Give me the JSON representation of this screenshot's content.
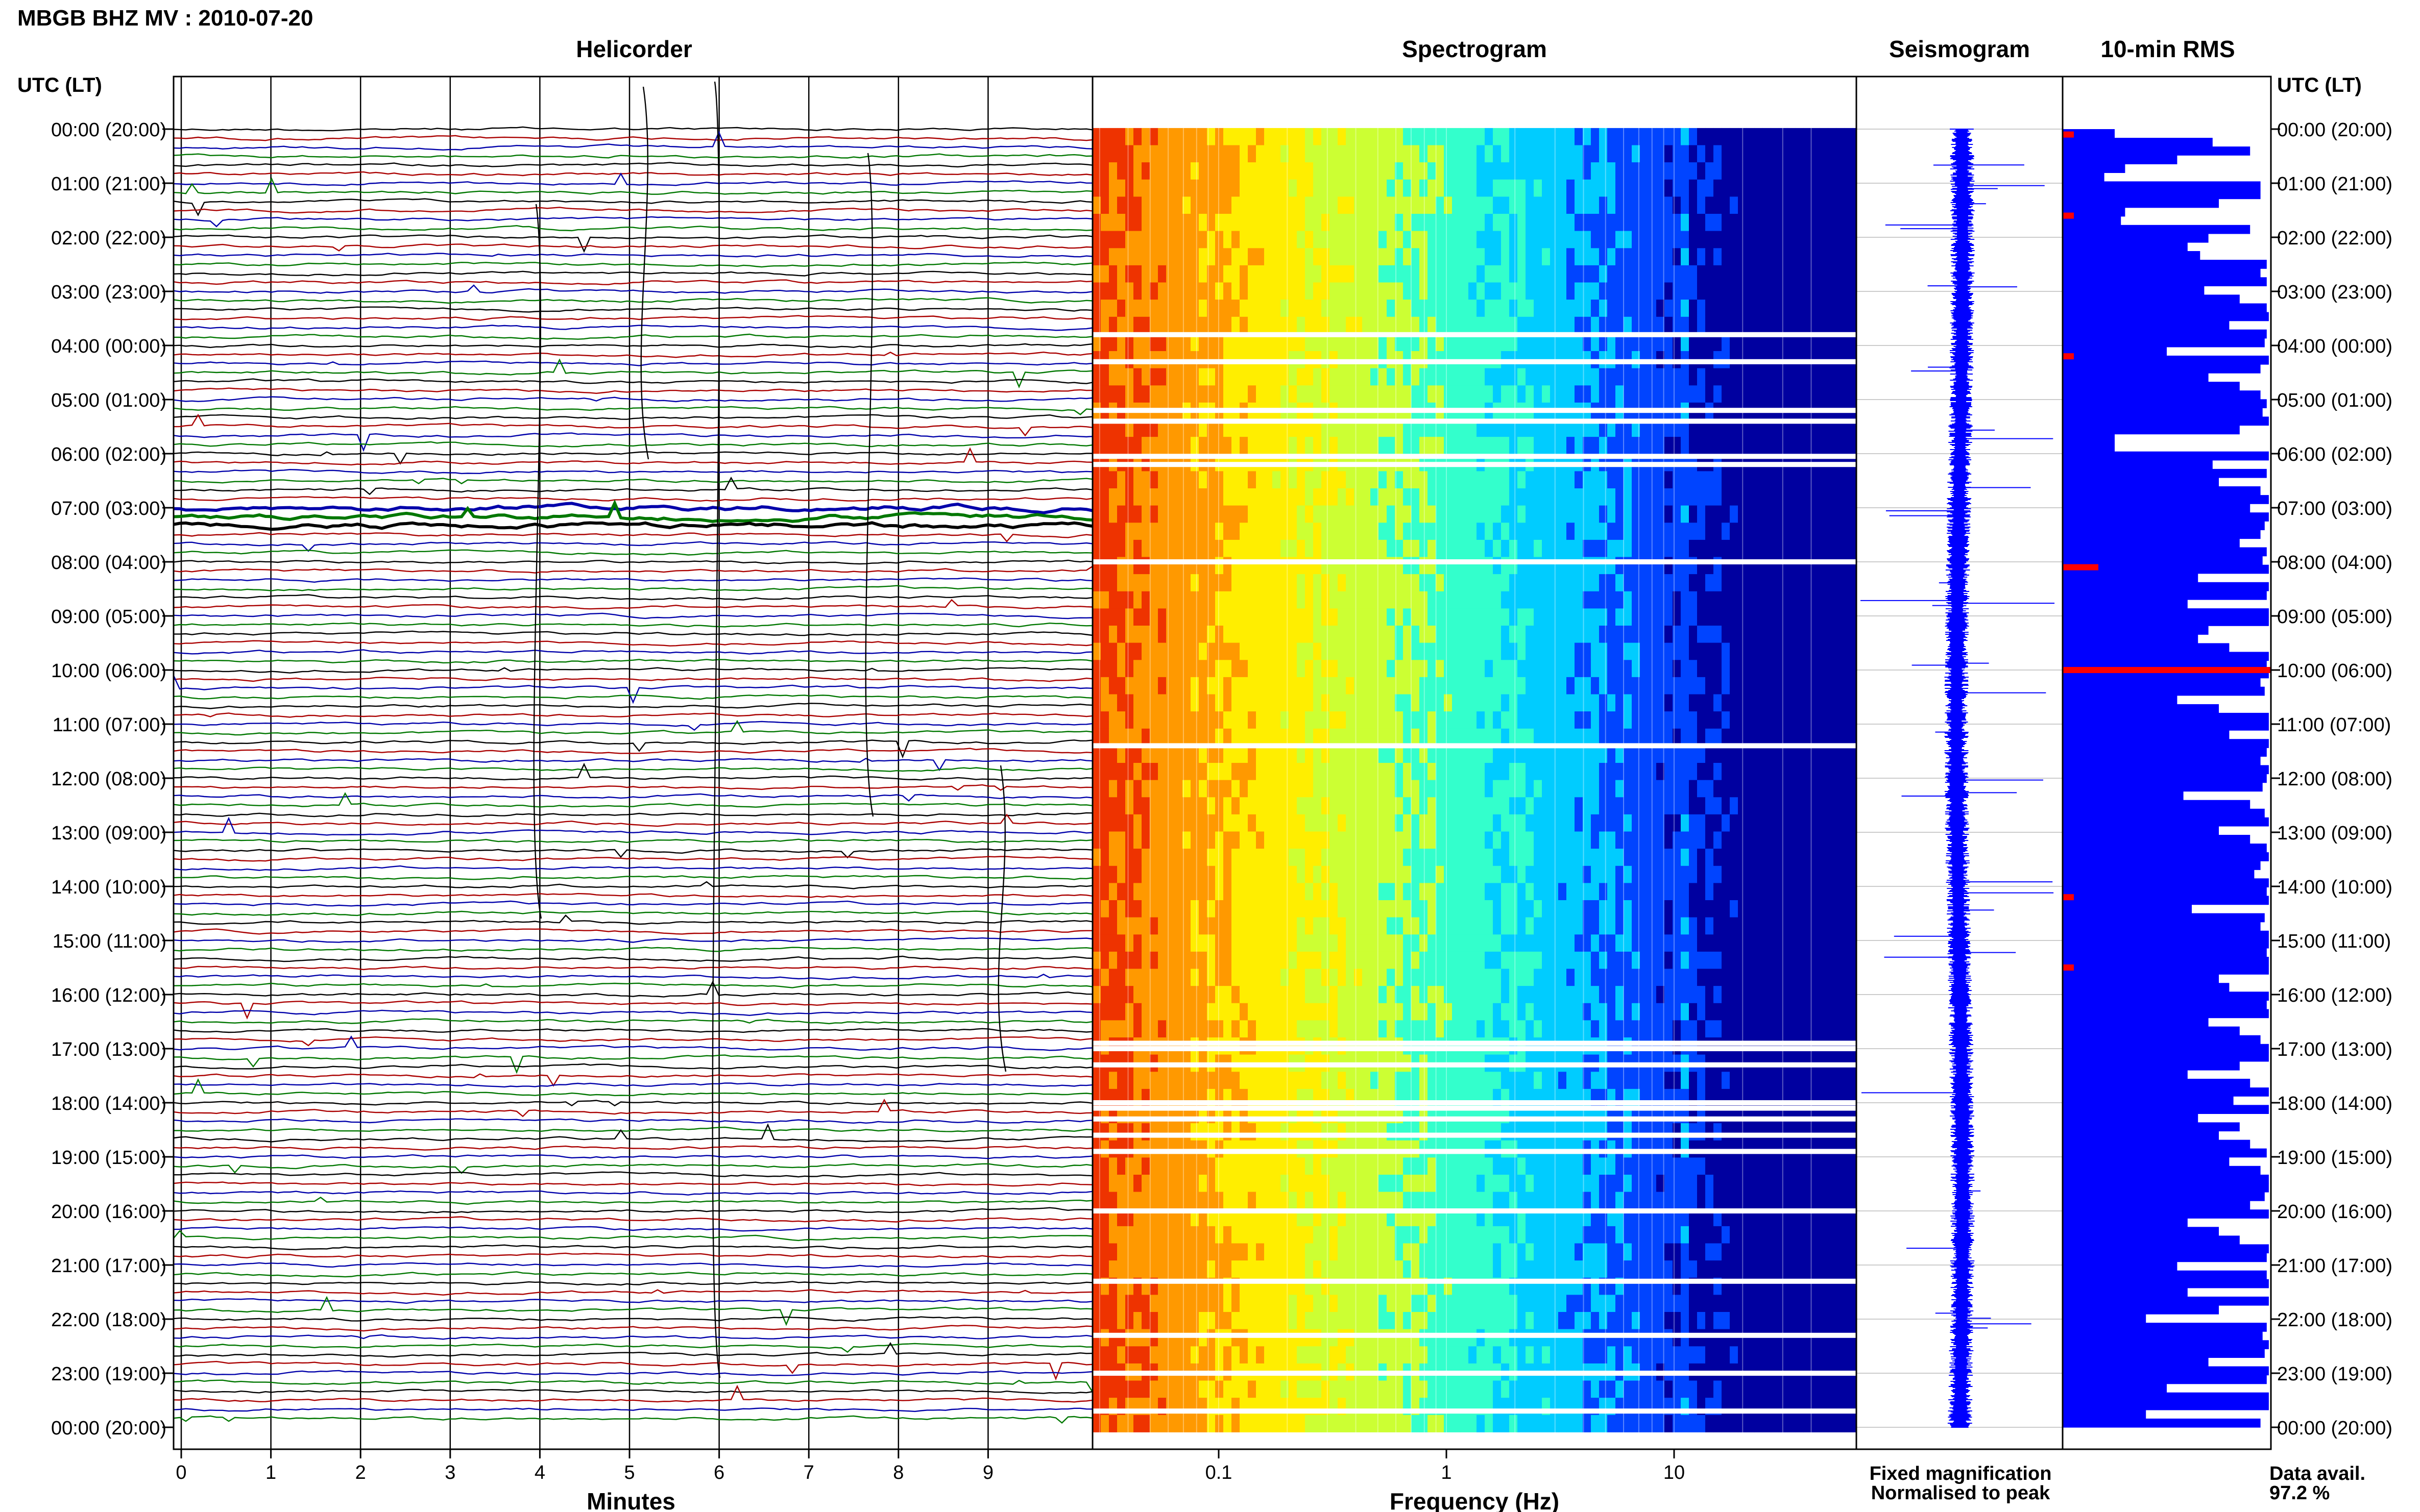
{
  "header": {
    "title": "MBGB BHZ MV : 2010-07-20"
  },
  "panels": {
    "helicorder": "Helicorder",
    "spectrogram": "Spectrogram",
    "seismogram": "Seismogram",
    "rms": "10-min RMS"
  },
  "time_axis": {
    "label": "UTC (LT)",
    "ticks": [
      "00:00 (20:00)",
      "01:00 (21:00)",
      "02:00 (22:00)",
      "03:00 (23:00)",
      "04:00 (00:00)",
      "05:00 (01:00)",
      "06:00 (02:00)",
      "07:00 (03:00)",
      "08:00 (04:00)",
      "09:00 (05:00)",
      "10:00 (06:00)",
      "11:00 (07:00)",
      "12:00 (08:00)",
      "13:00 (09:00)",
      "14:00 (10:00)",
      "15:00 (11:00)",
      "16:00 (12:00)",
      "17:00 (13:00)",
      "18:00 (14:00)",
      "19:00 (15:00)",
      "20:00 (16:00)",
      "21:00 (17:00)",
      "22:00 (18:00)",
      "23:00 (19:00)",
      "00:00 (20:00)"
    ]
  },
  "helicorder_axis": {
    "label": "Minutes",
    "ticks": [
      "0",
      "1",
      "2",
      "3",
      "4",
      "5",
      "6",
      "7",
      "8",
      "9"
    ],
    "trace_colors": [
      "#000000",
      "#aa0000",
      "#0000aa",
      "#007700"
    ]
  },
  "spectrogram_axis": {
    "label": "Frequency (Hz)",
    "ticks": [
      "0.1",
      "1",
      "10"
    ],
    "scale": "log"
  },
  "legend": {
    "fixed": "Fixed magnification",
    "fixed_color": "#0000ff",
    "normalised": "Normalised to peak",
    "normalised_color": "#ff0000"
  },
  "availability": {
    "label": "Data avail.",
    "value": "97.2 %"
  },
  "chart_data": {
    "type": "heatmap",
    "title": "MBGB BHZ MV : 2010-07-20",
    "xlabel": "Frequency (Hz)",
    "ylabel": "UTC (LT)",
    "x_scale": "log",
    "ylim_hours": [
      0,
      24
    ],
    "data_gaps_hours": [
      3.8,
      4.3,
      5.2,
      5.4,
      6.05,
      6.2,
      8.0,
      11.4,
      16.9,
      17.0,
      17.3,
      18.0,
      18.1,
      18.3,
      18.6,
      18.9,
      20.0,
      21.3,
      22.3,
      23.0,
      23.7
    ],
    "colormap": [
      "#0000a0",
      "#0044ff",
      "#00ccff",
      "#33ffcc",
      "#ccff33",
      "#ffee00",
      "#ff9900",
      "#ee3300"
    ],
    "rms_10min": {
      "color": "#0000ff",
      "highlight_color": "#ff0000",
      "highlight_hours": [
        0.1,
        1.6,
        4.2,
        8.1,
        10.0,
        14.2,
        15.5
      ],
      "values": [
        0.25,
        0.72,
        0.9,
        0.55,
        0.3,
        0.2,
        0.95,
        0.95,
        0.75,
        0.3,
        0.28,
        0.9,
        0.7,
        0.6,
        0.66,
        0.98,
        0.95,
        0.98,
        0.68,
        0.85,
        0.98,
        0.99,
        0.8,
        0.98,
        0.97,
        0.5,
        0.99,
        0.95,
        0.7,
        0.85,
        0.95,
        0.98,
        0.96,
        0.99,
        0.85,
        0.25,
        0.25,
        0.99,
        0.72,
        0.98,
        0.75,
        0.95,
        0.99,
        0.9,
        0.99,
        0.97,
        0.95,
        0.85,
        0.98,
        0.96,
        0.99,
        0.65,
        0.99,
        0.98,
        0.6,
        0.99,
        0.99,
        0.7,
        0.65,
        0.8,
        0.99,
        0.98,
        0.99,
        0.95,
        0.97,
        0.55,
        0.75,
        0.99,
        0.99,
        0.8,
        0.99,
        0.98,
        0.95,
        0.99,
        0.98,
        0.96,
        0.58,
        0.9,
        0.97,
        0.99,
        0.75,
        0.9,
        0.98,
        0.99,
        0.95,
        0.92,
        0.99,
        0.98,
        0.99,
        0.62,
        0.97,
        0.95,
        0.99,
        0.99,
        0.98,
        0.99,
        0.99,
        0.75,
        0.8,
        0.99,
        0.98,
        0.99,
        0.7,
        0.85,
        0.95,
        0.99,
        0.99,
        0.85,
        0.6,
        0.9,
        0.99,
        0.82,
        0.99,
        0.65,
        0.85,
        0.75,
        0.9,
        0.98,
        0.8,
        0.95,
        0.99,
        0.99,
        0.97,
        0.9,
        0.99,
        0.6,
        0.75,
        0.85,
        0.99,
        0.98,
        0.55,
        0.98,
        0.99,
        0.6,
        0.99,
        0.75,
        0.4,
        0.98,
        0.96,
        0.99,
        0.97,
        0.7,
        0.99,
        0.98,
        0.5,
        0.99,
        0.99,
        0.4,
        0.95
      ]
    }
  }
}
